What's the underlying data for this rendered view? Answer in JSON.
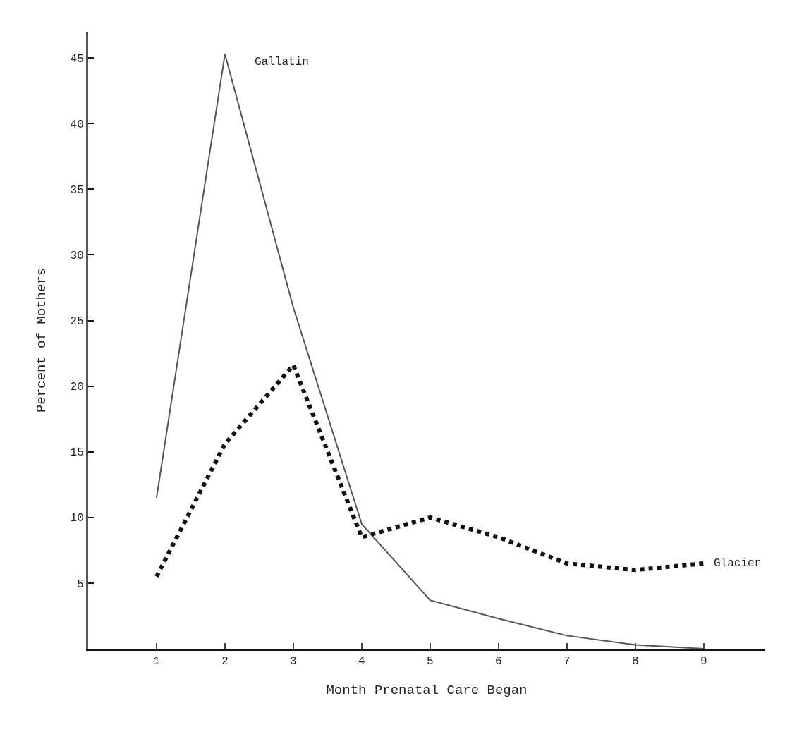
{
  "chart_data": {
    "type": "line",
    "xlabel": "Month Prenatal Care Began",
    "ylabel": "Percent of Mothers",
    "x": [
      1,
      2,
      3,
      4,
      5,
      6,
      7,
      8,
      9
    ],
    "series": [
      {
        "name": "Gallatin",
        "color": "#555555",
        "line_style": "solid",
        "values": [
          11.5,
          45.3,
          26,
          9.5,
          3.7,
          2.3,
          1,
          0.3,
          0
        ]
      },
      {
        "name": "Glacier",
        "color": "#111111",
        "line_style": "dotted",
        "values": [
          5.5,
          15.6,
          21.6,
          8.5,
          10,
          8.5,
          6.5,
          6,
          6.5
        ]
      }
    ],
    "xlim": [
      0,
      9.9
    ],
    "xticks": [
      1,
      2,
      3,
      4,
      5,
      6,
      7,
      8,
      9
    ],
    "ylim": [
      0,
      47
    ],
    "yticks": [
      5,
      10,
      15,
      20,
      25,
      30,
      35,
      40,
      45
    ],
    "legend": false,
    "marker": "none"
  }
}
